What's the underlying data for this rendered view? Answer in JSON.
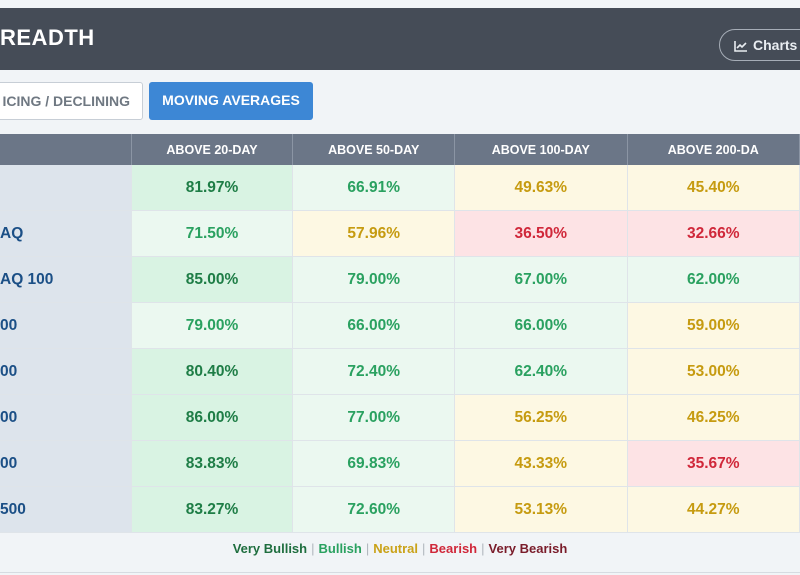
{
  "header": {
    "title": "READTH",
    "charts_label": "Charts"
  },
  "tabs": {
    "inactive_label": "ICING / DECLINING",
    "active_label": "MOVING AVERAGES"
  },
  "table": {
    "columns": [
      "ABOVE 20-DAY",
      "ABOVE 50-DAY",
      "ABOVE 100-DAY",
      "ABOVE 200-DA"
    ],
    "rows": [
      {
        "name": "",
        "values": [
          "81.97%",
          "66.91%",
          "49.63%",
          "45.40%"
        ],
        "status": [
          "very-bullish",
          "bullish",
          "neutral",
          "neutral"
        ]
      },
      {
        "name": "AQ",
        "values": [
          "71.50%",
          "57.96%",
          "36.50%",
          "32.66%"
        ],
        "status": [
          "bullish",
          "neutral",
          "bearish",
          "bearish"
        ]
      },
      {
        "name": "AQ 100",
        "values": [
          "85.00%",
          "79.00%",
          "67.00%",
          "62.00%"
        ],
        "status": [
          "very-bullish",
          "bullish",
          "bullish",
          "bullish"
        ]
      },
      {
        "name": "00",
        "values": [
          "79.00%",
          "66.00%",
          "66.00%",
          "59.00%"
        ],
        "status": [
          "bullish",
          "bullish",
          "bullish",
          "neutral"
        ]
      },
      {
        "name": "00",
        "values": [
          "80.40%",
          "72.40%",
          "62.40%",
          "53.00%"
        ],
        "status": [
          "very-bullish",
          "bullish",
          "bullish",
          "neutral"
        ]
      },
      {
        "name": "00",
        "values": [
          "86.00%",
          "77.00%",
          "56.25%",
          "46.25%"
        ],
        "status": [
          "very-bullish",
          "bullish",
          "neutral",
          "neutral"
        ]
      },
      {
        "name": "00",
        "values": [
          "83.83%",
          "69.83%",
          "43.33%",
          "35.67%"
        ],
        "status": [
          "very-bullish",
          "bullish",
          "neutral",
          "bearish"
        ]
      },
      {
        "name": "500",
        "values": [
          "83.27%",
          "72.60%",
          "53.13%",
          "44.27%"
        ],
        "status": [
          "very-bullish",
          "bullish",
          "neutral",
          "neutral"
        ]
      }
    ]
  },
  "legend": {
    "very_bullish": "Very Bullish",
    "bullish": "Bullish",
    "neutral": "Neutral",
    "bearish": "Bearish",
    "very_bearish": "Very Bearish"
  },
  "colors": {
    "header_bg": "#454c57",
    "active_tab": "#3d87d5",
    "very_bullish": "#1e7d46",
    "bullish": "#2aa160",
    "neutral": "#c69b10",
    "bearish": "#d0283a",
    "very_bearish": "#7a1c2a"
  },
  "icons": {
    "charts": "line-chart-icon"
  }
}
